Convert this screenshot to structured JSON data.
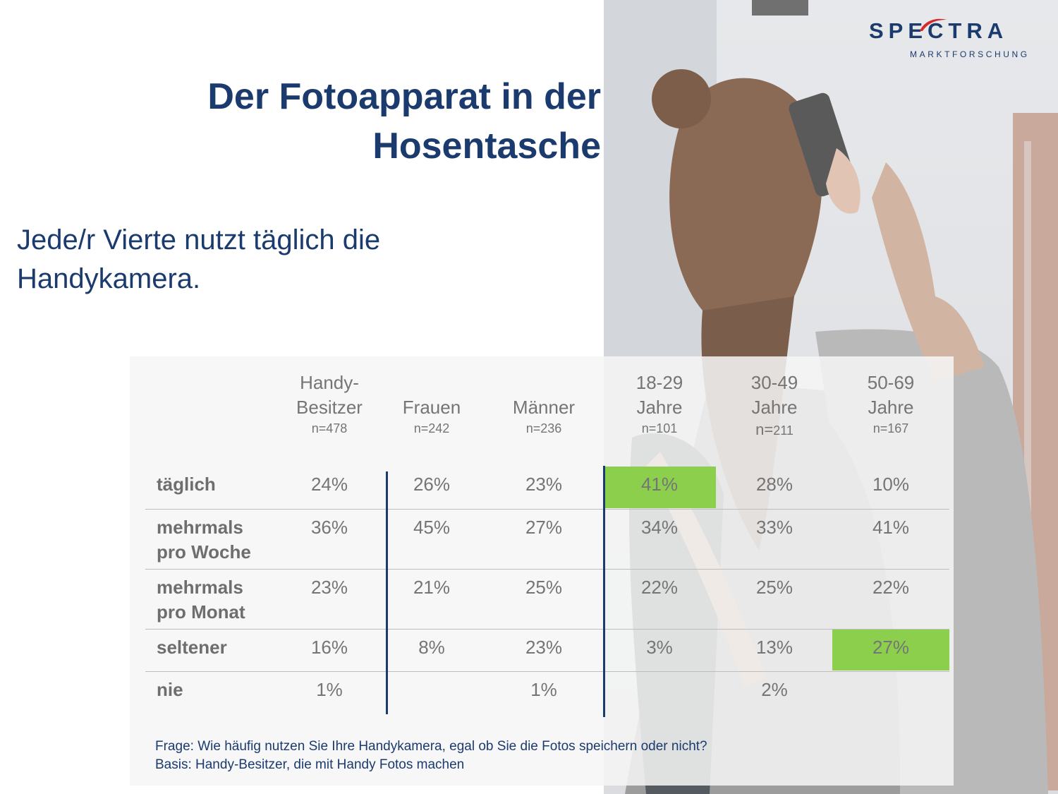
{
  "brand": {
    "logo_text": "SPECTRA",
    "logo_sub": "MARKTFORSCHUNG",
    "accent_color": "#1b3a6e",
    "logo_swoosh_color": "#d62a2a",
    "highlight_color": "#8ccf4d"
  },
  "title": {
    "line1": "Der Fotoapparat in der",
    "line2": "Hosentasche"
  },
  "subtitle": {
    "line1": "Jede/r Vierte nutzt täglich die",
    "line2": "Handykamera."
  },
  "table": {
    "columns": [
      {
        "line1": "Handy-",
        "line2": "Besitzer",
        "n": "n=478"
      },
      {
        "line1": "",
        "line2": "Frauen",
        "n": "n=242"
      },
      {
        "line1": "",
        "line2": "Männer",
        "n": "n=236"
      },
      {
        "line1": "18-29",
        "line2": "Jahre",
        "n": "n=101"
      },
      {
        "line1": "30-49",
        "line2": "Jahre",
        "n_prefix": "n=",
        "n_value": "211"
      },
      {
        "line1": "50-69",
        "line2": "Jahre",
        "n": "n=167"
      }
    ],
    "rows": [
      {
        "label1": "täglich",
        "label2": "",
        "values": [
          "24%",
          "26%",
          "23%",
          "41%",
          "28%",
          "10%"
        ]
      },
      {
        "label1": "mehrmals",
        "label2": "pro Woche",
        "values": [
          "36%",
          "45%",
          "27%",
          "34%",
          "33%",
          "41%"
        ]
      },
      {
        "label1": "mehrmals",
        "label2": "pro Monat",
        "values": [
          "23%",
          "21%",
          "25%",
          "22%",
          "25%",
          "22%"
        ]
      },
      {
        "label1": "seltener",
        "label2": "",
        "values": [
          "16%",
          "8%",
          "23%",
          "3%",
          "13%",
          "27%"
        ]
      },
      {
        "label1": "nie",
        "label2": "",
        "values": [
          "1%",
          "",
          "1%",
          "",
          "2%",
          ""
        ]
      }
    ],
    "highlights": [
      {
        "row": 0,
        "col": 3
      },
      {
        "row": 3,
        "col": 5
      }
    ]
  },
  "footer": {
    "question": "Frage: Wie häufig nutzen Sie Ihre Handykamera, egal ob Sie die Fotos speichern oder nicht?",
    "basis": "Basis: Handy-Besitzer, die mit Handy Fotos machen"
  },
  "photo": {
    "icon": "woman-taking-phone-photo-image"
  }
}
